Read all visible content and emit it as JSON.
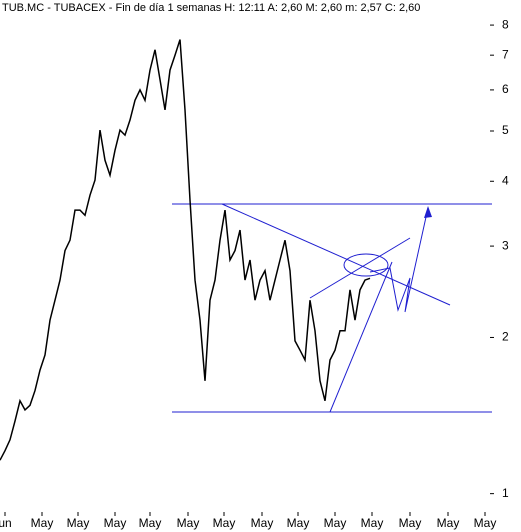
{
  "chart_data": {
    "type": "line",
    "title": "TUB.MC - TUBACEX - Fin de día 1 semanas H: 12:11 A: 2,60 M: 2,60 m: 2,57 C: 2,60",
    "x": [
      0,
      1,
      2,
      3,
      4,
      5,
      6,
      7,
      8,
      9,
      10,
      11,
      12,
      13,
      14,
      15,
      16,
      17,
      18,
      19,
      20,
      21,
      22,
      23,
      24,
      25,
      26,
      27,
      28,
      29,
      30,
      31,
      32,
      33,
      34,
      35,
      36,
      37,
      38,
      39,
      40,
      41,
      42,
      43,
      44,
      45,
      46,
      47,
      48,
      49,
      50,
      51,
      52,
      53,
      54,
      55,
      56,
      57,
      58,
      59,
      60,
      61,
      62,
      63,
      64,
      65,
      66,
      67,
      68,
      69,
      70,
      71,
      72,
      73,
      74
    ],
    "values": [
      1.16,
      1.21,
      1.27,
      1.38,
      1.51,
      1.45,
      1.48,
      1.58,
      1.73,
      1.85,
      2.16,
      2.36,
      2.58,
      2.94,
      3.08,
      3.52,
      3.52,
      3.44,
      3.76,
      4.02,
      5.02,
      4.39,
      4.11,
      4.59,
      5.02,
      4.91,
      5.25,
      5.73,
      6.0,
      5.73,
      6.55,
      7.17,
      6.28,
      5.49,
      6.55,
      7.0,
      7.5,
      5.49,
      3.68,
      2.58,
      2.16,
      1.65,
      2.36,
      2.58,
      3.08,
      3.52,
      2.82,
      2.94,
      3.22,
      2.58,
      2.82,
      2.36,
      2.58,
      2.69,
      2.36,
      2.58,
      2.82,
      3.08,
      2.69,
      1.97,
      1.89,
      1.81,
      2.36,
      2.06,
      1.65,
      1.51,
      1.81,
      1.89,
      2.06,
      2.06,
      2.47,
      2.16,
      2.47,
      2.58,
      2.6
    ],
    "color": "#000000",
    "log_scale": true,
    "xlim": [
      0,
      98
    ],
    "xticks": [
      {
        "value": 1,
        "label": "un"
      },
      {
        "value": 8.4,
        "label": "May"
      },
      {
        "value": 15.6,
        "label": "May"
      },
      {
        "value": 23,
        "label": "May"
      },
      {
        "value": 30,
        "label": "May"
      },
      {
        "value": 37.6,
        "label": "May"
      },
      {
        "value": 44.8,
        "label": "May"
      },
      {
        "value": 52.4,
        "label": "May"
      },
      {
        "value": 59.6,
        "label": "May"
      },
      {
        "value": 67,
        "label": "May"
      },
      {
        "value": 74.4,
        "label": "May"
      },
      {
        "value": 82,
        "label": "May"
      },
      {
        "value": 89.6,
        "label": "May"
      },
      {
        "value": 97,
        "label": "May"
      }
    ],
    "ylim": [
      0.93,
      8.63
    ],
    "yticks": [
      1,
      2,
      3,
      4,
      5,
      6,
      7,
      8
    ]
  }
}
